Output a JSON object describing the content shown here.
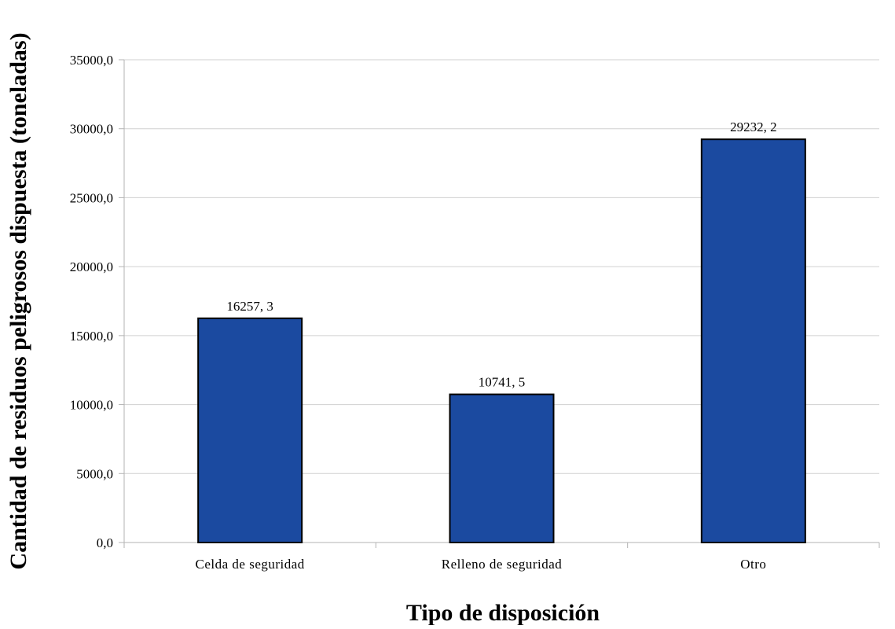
{
  "chart_data": {
    "type": "bar",
    "title": "",
    "xlabel": "Tipo de disposición",
    "ylabel": "Cantidad de residuos peligrosos dispuesta (toneladas)",
    "categories": [
      "Celda de seguridad",
      "Relleno de seguridad",
      "Otro"
    ],
    "values": [
      16257.3,
      10741.5,
      29232.2
    ],
    "data_labels": [
      "16257, 3",
      "10741, 5",
      "29232, 2"
    ],
    "ylim": [
      0,
      35000
    ],
    "yticks": [
      0,
      5000,
      10000,
      15000,
      20000,
      25000,
      30000,
      35000
    ],
    "ytick_labels": [
      "0,0",
      "5000,0",
      "10000,0",
      "15000,0",
      "20000,0",
      "25000,0",
      "30000,0",
      "35000,0"
    ],
    "grid": true,
    "legend": "none",
    "colors": {
      "bar_fill": "#1b4aa0",
      "bar_stroke": "#000000",
      "grid": "#d0d0d0",
      "axis": "#b3b3b3"
    }
  }
}
